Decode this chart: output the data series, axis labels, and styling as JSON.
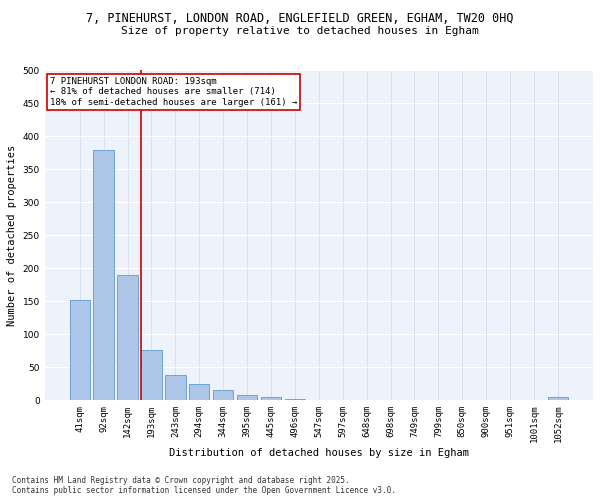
{
  "title_line1": "7, PINEHURST, LONDON ROAD, ENGLEFIELD GREEN, EGHAM, TW20 0HQ",
  "title_line2": "Size of property relative to detached houses in Egham",
  "xlabel": "Distribution of detached houses by size in Egham",
  "ylabel": "Number of detached properties",
  "categories": [
    "41sqm",
    "92sqm",
    "142sqm",
    "193sqm",
    "243sqm",
    "294sqm",
    "344sqm",
    "395sqm",
    "445sqm",
    "496sqm",
    "547sqm",
    "597sqm",
    "648sqm",
    "698sqm",
    "749sqm",
    "799sqm",
    "850sqm",
    "900sqm",
    "951sqm",
    "1001sqm",
    "1052sqm"
  ],
  "values": [
    152,
    380,
    190,
    76,
    38,
    25,
    15,
    7,
    5,
    1,
    0,
    0,
    0,
    0,
    0,
    0,
    0,
    0,
    0,
    0,
    5
  ],
  "bar_color": "#aec6e8",
  "bar_edge_color": "#5b9bd5",
  "highlight_index": 3,
  "highlight_line_color": "#cc0000",
  "annotation_box_color": "#cc0000",
  "annotation_text": "7 PINEHURST LONDON ROAD: 193sqm\n← 81% of detached houses are smaller (714)\n18% of semi-detached houses are larger (161) →",
  "ylim": [
    0,
    500
  ],
  "yticks": [
    0,
    50,
    100,
    150,
    200,
    250,
    300,
    350,
    400,
    450,
    500
  ],
  "background_color": "#eef3fb",
  "grid_color": "#d0d8e8",
  "footer": "Contains HM Land Registry data © Crown copyright and database right 2025.\nContains public sector information licensed under the Open Government Licence v3.0.",
  "title_fontsize": 8.5,
  "subtitle_fontsize": 8,
  "axis_label_fontsize": 7.5,
  "tick_fontsize": 6.5,
  "annotation_fontsize": 6.5,
  "footer_fontsize": 5.5
}
